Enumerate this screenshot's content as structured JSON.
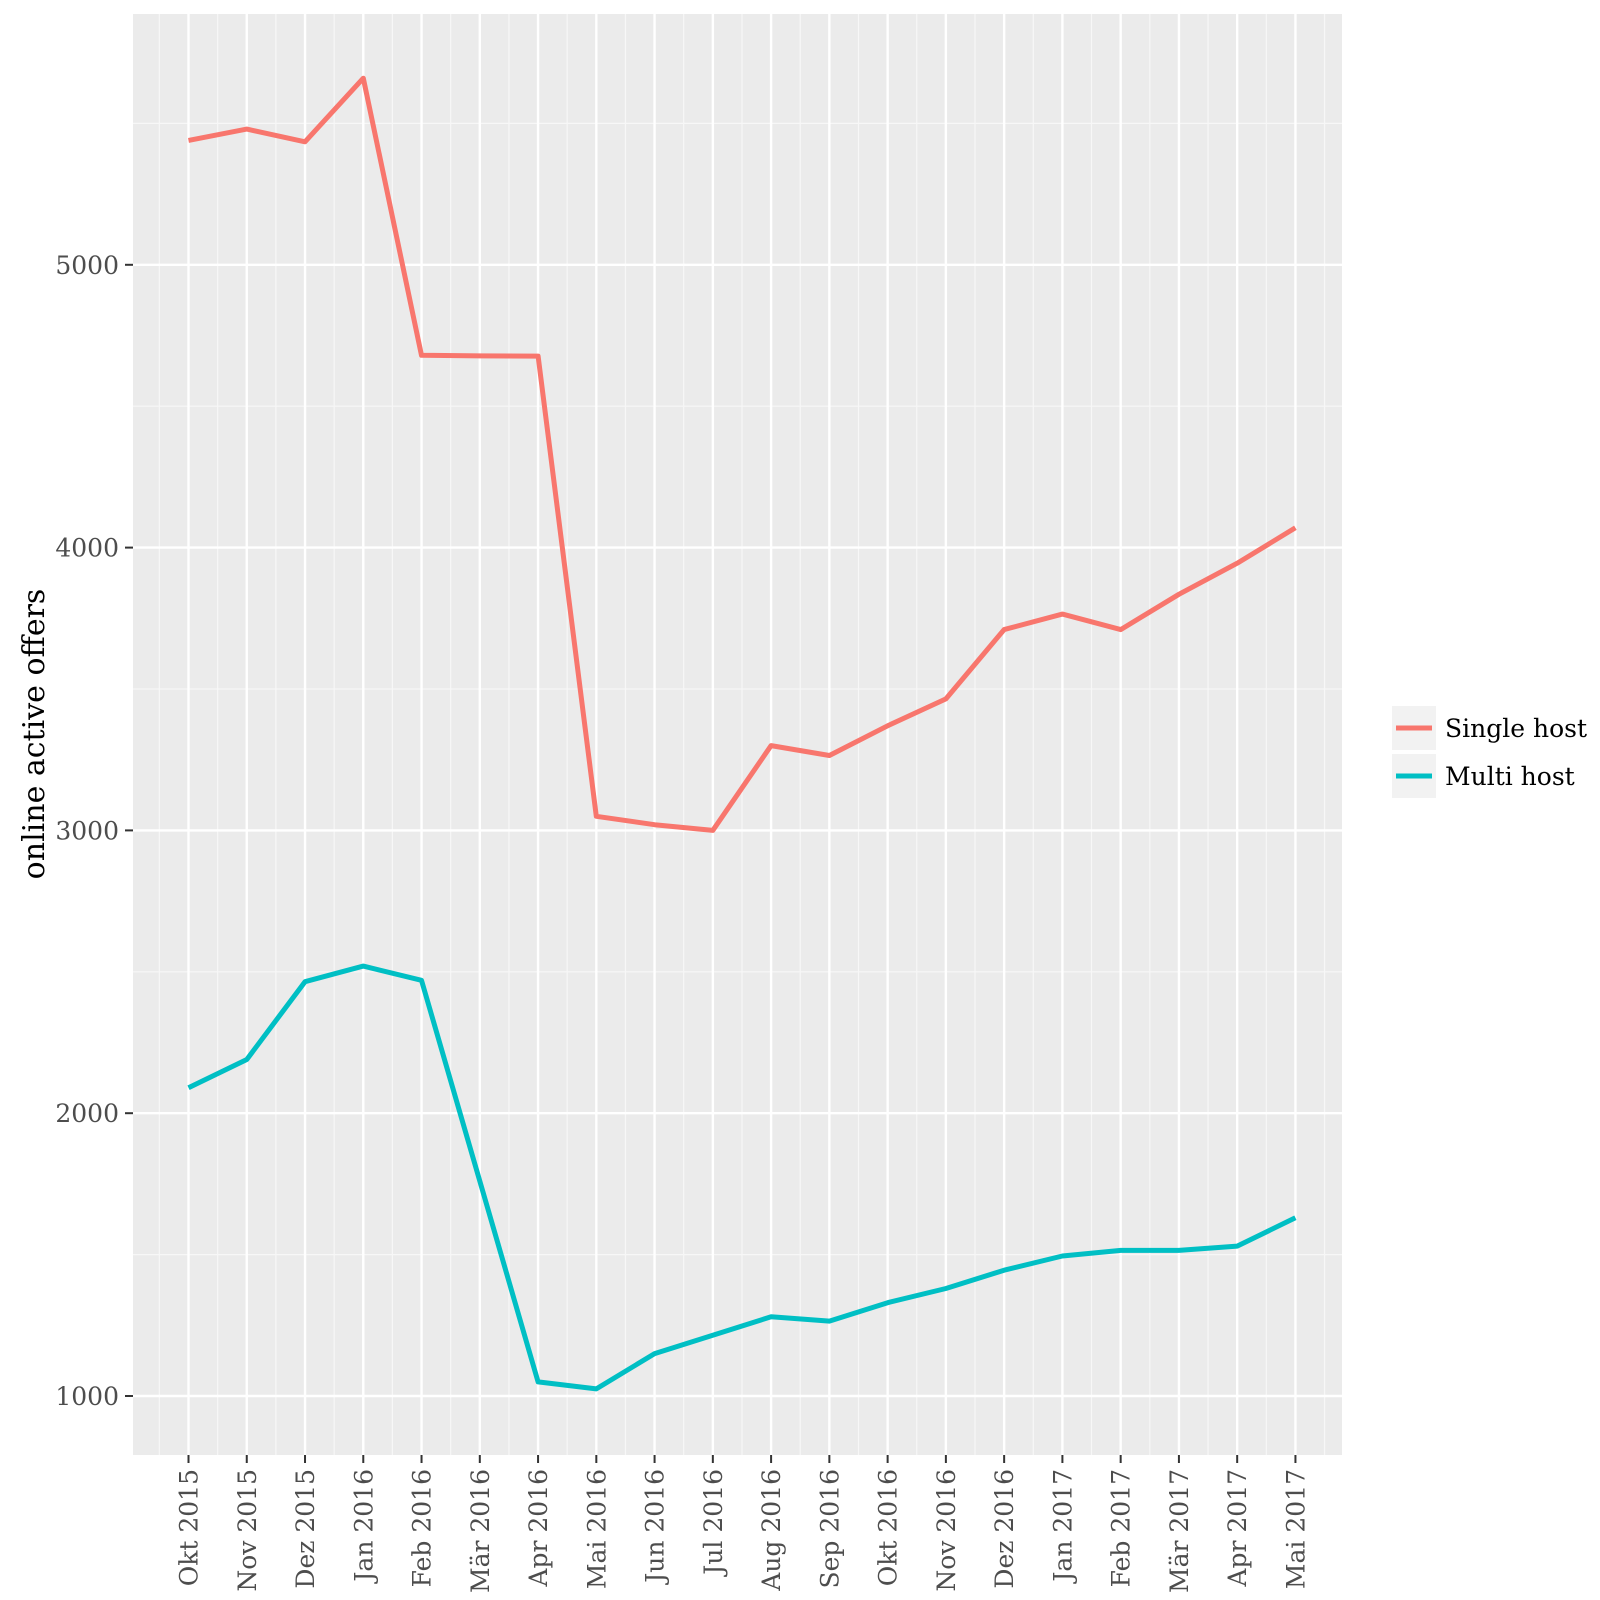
{
  "chart_data": {
    "type": "line",
    "title": "",
    "xlabel": "",
    "ylabel": "online active offers",
    "categories": [
      "Okt 2015",
      "Nov 2015",
      "Dez 2015",
      "Jan 2016",
      "Feb 2016",
      "Mär 2016",
      "Apr 2016",
      "Mai 2016",
      "Jun 2016",
      "Jul 2016",
      "Aug 2016",
      "Sep 2016",
      "Okt 2016",
      "Nov 2016",
      "Dez 2016",
      "Jan 2017",
      "Feb 2017",
      "Mär 2017",
      "Apr 2017",
      "Mai 2017"
    ],
    "yticks": [
      1000,
      2000,
      3000,
      4000,
      5000
    ],
    "ylim": [
      800,
      5920
    ],
    "grid": true,
    "legend_position": "right",
    "series": [
      {
        "name": "Single host",
        "color": "#F8766D",
        "values": [
          5440,
          5480,
          5435,
          5660,
          4680,
          4678,
          4677,
          3050,
          3020,
          3000,
          3300,
          3265,
          3370,
          3465,
          3710,
          3765,
          3710,
          3835,
          3945,
          4070
        ]
      },
      {
        "name": "Multi host",
        "color": "#00BFC4",
        "values": [
          2090,
          2190,
          2465,
          2520,
          2470,
          1760,
          1050,
          1025,
          1150,
          1215,
          1280,
          1265,
          1330,
          1380,
          1445,
          1495,
          1515,
          1515,
          1530,
          1630
        ]
      }
    ]
  }
}
